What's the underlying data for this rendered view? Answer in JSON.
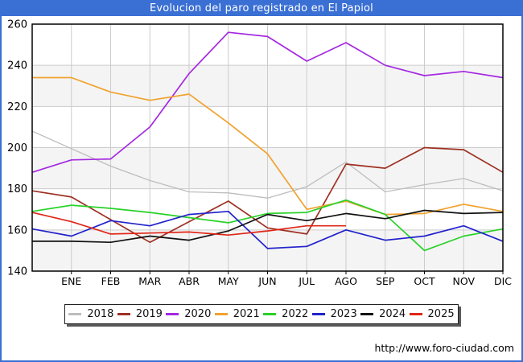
{
  "title": "Evolucion del paro registrado en El Papiol",
  "footer": {
    "url": "http://www.foro-ciudad.com"
  },
  "colors": {
    "frame_border": "#3a6fd4",
    "titlebar_bg": "#3a6fd4",
    "titlebar_text": "#ffffff",
    "plot_border": "#000000",
    "gridline": "#cccccc",
    "band_fill": "#f4f4f4",
    "axis_text": "#000000"
  },
  "chart_data": {
    "type": "line",
    "title": "Evolucion del paro registrado en El Papiol",
    "xlabel": "",
    "ylabel": "",
    "ylim": [
      140,
      260
    ],
    "y_ticks": [
      140,
      160,
      180,
      200,
      220,
      240,
      260
    ],
    "x_tick_labels": [
      "ENE",
      "FEB",
      "MAR",
      "ABR",
      "MAY",
      "JUN",
      "JUL",
      "AGO",
      "SEP",
      "OCT",
      "NOV",
      "DIC"
    ],
    "grid": true,
    "shaded_bands": [
      [
        140,
        160
      ],
      [
        180,
        200
      ],
      [
        220,
        240
      ]
    ],
    "legend_position": "bottom",
    "note": "First value of each series is plotted at the left axis (previous December); the 12 monthly values fall on the ENE-DIC gridlines. 2025 series ends in AGO.",
    "series": [
      {
        "name": "2018",
        "color": "#bdbdbd",
        "values": [
          208,
          199.5,
          191,
          184,
          178.5,
          178,
          175.5,
          181,
          193,
          178.5,
          182,
          185,
          179
        ]
      },
      {
        "name": "2019",
        "color": "#9e3123",
        "values": [
          179,
          176,
          165,
          154,
          164,
          174,
          161,
          158,
          192,
          190,
          200,
          199,
          188
        ]
      },
      {
        "name": "2020",
        "color": "#a428e0",
        "values": [
          188,
          194,
          194.5,
          210,
          236,
          256,
          254,
          242,
          251,
          240,
          235,
          237,
          234
        ]
      },
      {
        "name": "2021",
        "color": "#f1a22e",
        "values": [
          234,
          234,
          227,
          223,
          226,
          212,
          197,
          170,
          174,
          167.5,
          168,
          172.5,
          169
        ]
      },
      {
        "name": "2022",
        "color": "#28d228",
        "values": [
          169,
          172,
          170.5,
          168.5,
          166,
          163.5,
          168,
          168.5,
          174.5,
          167.5,
          150,
          157,
          160.5
        ]
      },
      {
        "name": "2023",
        "color": "#2222cc",
        "values": [
          160.5,
          157,
          164.5,
          162,
          167.5,
          169,
          151,
          152,
          160,
          155,
          157,
          162,
          154.5
        ]
      },
      {
        "name": "2024",
        "color": "#111111",
        "values": [
          154.5,
          154.5,
          154,
          157,
          155,
          159.5,
          167.5,
          164.5,
          168,
          165.5,
          169.5,
          168,
          168.5
        ]
      },
      {
        "name": "2025",
        "color": "#e02618",
        "values": [
          168.5,
          164,
          158,
          158.5,
          159,
          157.5,
          159.5,
          162,
          162
        ]
      }
    ]
  },
  "legend": {
    "items": [
      {
        "label": "2018",
        "color": "#bdbdbd"
      },
      {
        "label": "2019",
        "color": "#9e3123"
      },
      {
        "label": "2020",
        "color": "#a428e0"
      },
      {
        "label": "2021",
        "color": "#f1a22e"
      },
      {
        "label": "2022",
        "color": "#28d228"
      },
      {
        "label": "2023",
        "color": "#2222cc"
      },
      {
        "label": "2024",
        "color": "#111111"
      },
      {
        "label": "2025",
        "color": "#e02618"
      }
    ]
  }
}
